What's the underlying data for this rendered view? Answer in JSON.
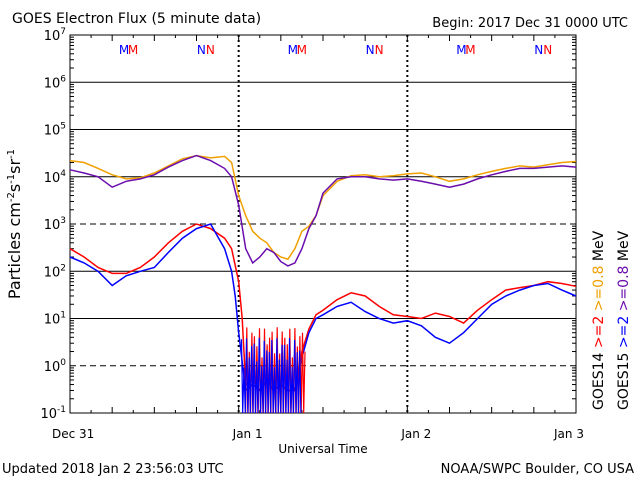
{
  "header": {
    "title": "GOES Electron Flux (5 minute data)",
    "begin": "Begin: 2017 Dec 31 0000 UTC"
  },
  "footer": {
    "updated": "Updated 2018 Jan  2 23:56:03 UTC",
    "credit": "NOAA/SWPC Boulder, CO USA"
  },
  "colors": {
    "goes14_08": "#f0a000",
    "goes14_2": "#ff0000",
    "goes15_08": "#6a0dad",
    "goes15_2": "#0000ff",
    "grid": "#000000"
  },
  "chart_data": {
    "type": "line",
    "title": "GOES Electron Flux (5 minute data)",
    "xlabel": "Universal Time",
    "ylabel": "Particles cm-2s-1sr-1",
    "y_scale": "log",
    "ylim": [
      0.1,
      10000000
    ],
    "xlim": [
      0,
      72
    ],
    "x_unit": "hours since 2017 Dec 31 0000 UTC",
    "x_ticks": [
      {
        "x": 0,
        "label": "Dec 31"
      },
      {
        "x": 24,
        "label": "Jan 1"
      },
      {
        "x": 48,
        "label": "Jan 2"
      },
      {
        "x": 72,
        "label": "Jan 3"
      }
    ],
    "y_ticks": [
      {
        "exp": -1,
        "label": "10-1"
      },
      {
        "exp": 0,
        "label": "100"
      },
      {
        "exp": 1,
        "label": "101"
      },
      {
        "exp": 2,
        "label": "102"
      },
      {
        "exp": 3,
        "label": "103"
      },
      {
        "exp": 4,
        "label": "104"
      },
      {
        "exp": 5,
        "label": "105"
      },
      {
        "exp": 6,
        "label": "106"
      },
      {
        "exp": 7,
        "label": "107"
      }
    ],
    "threshold_lines": [
      1000,
      1
    ],
    "event_markers": [
      {
        "day_index": 0,
        "labels": [
          "M",
          "M",
          "N",
          "N"
        ]
      },
      {
        "day_index": 1,
        "labels": [
          "M",
          "M",
          "N",
          "N"
        ]
      },
      {
        "day_index": 2,
        "labels": [
          "M",
          "M",
          "N",
          "N"
        ]
      }
    ],
    "legend_right": [
      {
        "label": "GOES14",
        "color": "#000000"
      },
      {
        "label": ">=2",
        "color": "#ff0000"
      },
      {
        "label": ">=0.8",
        "color": "#f0a000"
      },
      {
        "label": "MeV",
        "color": "#000000"
      }
    ],
    "legend_right2": [
      {
        "label": "GOES15",
        "color": "#000000"
      },
      {
        "label": ">=2",
        "color": "#0000ff"
      },
      {
        "label": ">=0.8",
        "color": "#6a0dad"
      },
      {
        "label": "MeV",
        "color": "#000000"
      }
    ],
    "series": [
      {
        "name": "GOES14 >=0.8 MeV",
        "color": "#f0a000",
        "x": [
          0,
          2,
          4,
          6,
          8,
          10,
          12,
          14,
          16,
          18,
          20,
          22,
          23,
          24,
          25,
          26,
          27,
          28,
          29,
          30,
          31,
          32,
          33,
          34,
          35,
          36,
          38,
          40,
          42,
          44,
          46,
          48,
          50,
          52,
          54,
          56,
          58,
          60,
          62,
          64,
          66,
          68,
          70,
          72
        ],
        "y": [
          22000,
          20000,
          15000,
          11000,
          9000,
          9500,
          12000,
          17000,
          24000,
          28000,
          25000,
          27000,
          20000,
          4000,
          1500,
          700,
          500,
          400,
          250,
          200,
          180,
          300,
          700,
          900,
          1500,
          4000,
          8000,
          10500,
          11000,
          10000,
          10500,
          11500,
          12000,
          10000,
          8000,
          9000,
          11000,
          13000,
          15000,
          17000,
          16000,
          18000,
          20000,
          21000
        ]
      },
      {
        "name": "GOES15 >=0.8 MeV",
        "color": "#6a0dad",
        "x": [
          0,
          2,
          4,
          6,
          8,
          10,
          12,
          14,
          16,
          18,
          20,
          22,
          23,
          24,
          25,
          26,
          27,
          28,
          29,
          30,
          31,
          32,
          33,
          34,
          35,
          36,
          38,
          40,
          42,
          44,
          46,
          48,
          50,
          52,
          54,
          56,
          58,
          60,
          62,
          64,
          66,
          68,
          70,
          72
        ],
        "y": [
          14000,
          12000,
          10000,
          6000,
          8000,
          9000,
          11000,
          16000,
          22000,
          28000,
          22000,
          15000,
          10000,
          2500,
          300,
          150,
          200,
          300,
          250,
          160,
          130,
          150,
          300,
          800,
          1500,
          4500,
          9000,
          10000,
          10000,
          9000,
          8500,
          9000,
          8000,
          7000,
          6000,
          7000,
          9000,
          11000,
          13000,
          15000,
          15000,
          16000,
          17000,
          16000
        ]
      },
      {
        "name": "GOES14 >=2 MeV",
        "color": "#ff0000",
        "x": [
          0,
          2,
          4,
          6,
          8,
          10,
          12,
          14,
          16,
          18,
          20,
          22,
          23,
          24,
          24.5,
          25,
          26,
          27,
          28,
          29,
          30,
          31,
          32,
          33,
          34,
          35,
          36,
          38,
          40,
          42,
          44,
          46,
          48,
          50,
          52,
          54,
          56,
          58,
          60,
          62,
          64,
          66,
          68,
          70,
          72
        ],
        "y": [
          300,
          200,
          120,
          90,
          90,
          120,
          200,
          400,
          700,
          1000,
          800,
          500,
          300,
          60,
          10,
          0.4,
          0.5,
          0.3,
          0.5,
          0.3,
          0.4,
          0.3,
          0.3,
          2,
          6,
          12,
          15,
          25,
          35,
          30,
          18,
          12,
          11,
          10,
          13,
          11,
          8,
          15,
          25,
          40,
          45,
          50,
          60,
          55,
          48
        ]
      },
      {
        "name": "GOES15 >=2 MeV",
        "color": "#0000ff",
        "x": [
          0,
          2,
          4,
          6,
          8,
          10,
          12,
          14,
          16,
          18,
          20,
          22,
          23,
          23.5,
          24,
          25,
          26,
          27,
          28,
          29,
          30,
          31,
          32,
          33,
          34,
          35,
          36,
          38,
          40,
          42,
          44,
          46,
          48,
          50,
          52,
          54,
          56,
          58,
          60,
          62,
          64,
          66,
          68,
          70,
          72
        ],
        "y": [
          200,
          150,
          100,
          50,
          80,
          100,
          120,
          250,
          500,
          800,
          1000,
          300,
          100,
          30,
          5,
          0.3,
          0.4,
          0.3,
          0.5,
          0.3,
          0.4,
          0.3,
          0.3,
          1.5,
          5,
          10,
          12,
          18,
          22,
          14,
          10,
          8,
          9,
          7,
          4,
          3,
          5,
          10,
          20,
          30,
          40,
          50,
          55,
          40,
          30
        ]
      }
    ]
  }
}
